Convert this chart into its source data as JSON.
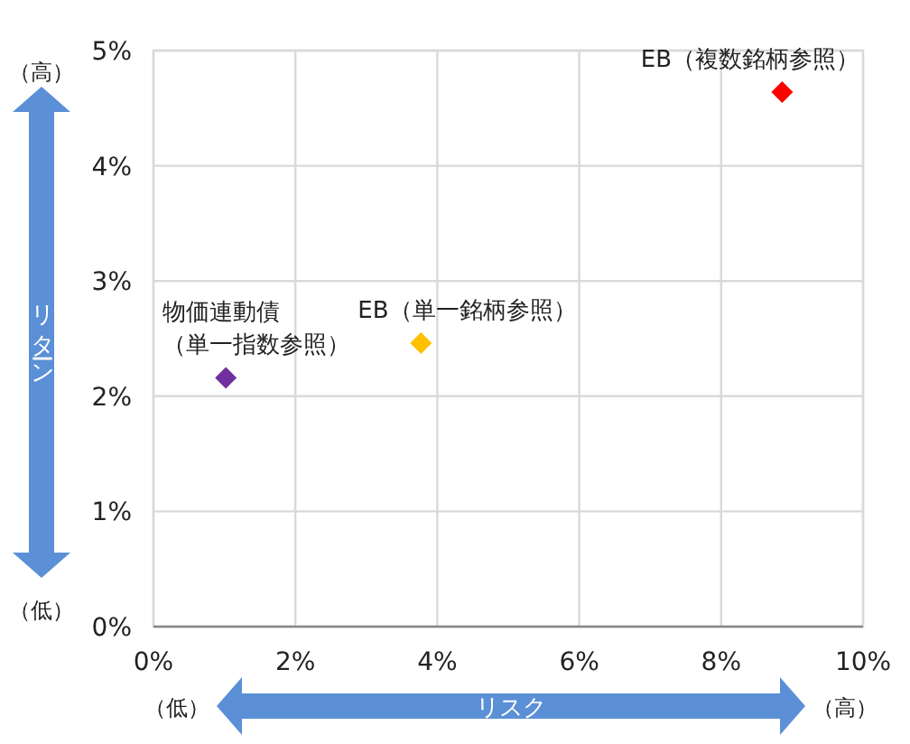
{
  "chart_data": {
    "type": "scatter",
    "xlabel": "リスク",
    "ylabel": "リターン",
    "marker": "diamond",
    "grid": true,
    "xlim": [
      0,
      10
    ],
    "ylim": [
      0,
      5
    ],
    "xticks": [
      {
        "value": 0,
        "label": "0%"
      },
      {
        "value": 2,
        "label": "2%"
      },
      {
        "value": 4,
        "label": "4%"
      },
      {
        "value": 6,
        "label": "6%"
      },
      {
        "value": 8,
        "label": "8%"
      },
      {
        "value": 10,
        "label": "10%"
      }
    ],
    "yticks": [
      {
        "value": 0,
        "label": "0%"
      },
      {
        "value": 1,
        "label": "1%"
      },
      {
        "value": 2,
        "label": "2%"
      },
      {
        "value": 3,
        "label": "3%"
      },
      {
        "value": 4,
        "label": "4%"
      },
      {
        "value": 5,
        "label": "5%"
      }
    ],
    "series": [
      {
        "name": "物価連動債（単一指数参照）",
        "color": "#7030a0",
        "x": [
          1.02
        ],
        "values": [
          2.16
        ]
      },
      {
        "name": "EB（単一銘柄参照）",
        "color": "#ffc000",
        "x": [
          3.77
        ],
        "values": [
          2.46
        ]
      },
      {
        "name": "EB（複数銘柄参照）",
        "color": "#ff0000",
        "x": [
          8.86
        ],
        "values": [
          4.64
        ]
      }
    ],
    "annotations": [
      "（高）",
      "（低）",
      "（低）",
      "（高）"
    ]
  }
}
